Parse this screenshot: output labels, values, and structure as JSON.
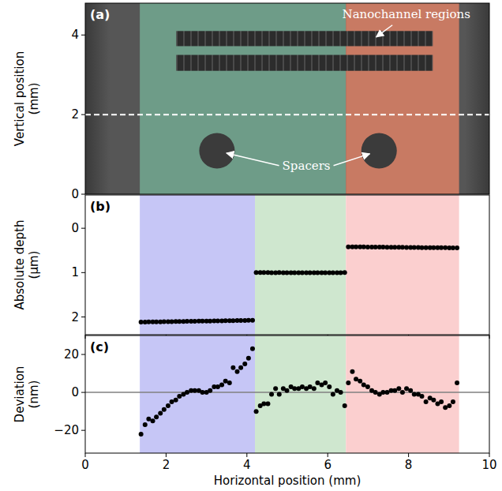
{
  "chart_data": [
    {
      "type": "image",
      "title": "(a)",
      "y_label": "Vertical position (mm)",
      "xlim": [
        0,
        10
      ],
      "ylim": [
        0,
        4.8
      ],
      "yticks": [
        0,
        2,
        4
      ],
      "tick_labels": "y",
      "regions": [
        {
          "start": 1.35,
          "end": 6.45,
          "color": "#6e9c88"
        },
        {
          "start": 6.45,
          "end": 9.25,
          "color": "#c87a63"
        }
      ],
      "channels": [
        {
          "x0": 2.25,
          "x1": 8.6,
          "y0": 3.72,
          "y1": 4.1
        },
        {
          "x0": 2.25,
          "x1": 8.6,
          "y0": 3.1,
          "y1": 3.5
        }
      ],
      "spacers": [
        {
          "x": 3.26,
          "y": 1.09,
          "r": 0.44
        },
        {
          "x": 7.27,
          "y": 1.09,
          "r": 0.44
        }
      ],
      "cut_line": 2,
      "annotations": [
        "Nanochannel regions",
        "Spacers"
      ]
    },
    {
      "type": "scatter",
      "title": "(b)",
      "y_label": "Absolute depth (μm)",
      "xlim": [
        0,
        10
      ],
      "ylim": [
        2.4,
        -0.75
      ],
      "xticks": [
        0,
        2,
        4,
        6,
        8,
        10
      ],
      "yticks": [
        0,
        1,
        2
      ],
      "tick_labels": "y",
      "color": "#000000",
      "marker": "circle",
      "regions": [
        {
          "start": 1.35,
          "end": 4.2,
          "color": "#c6c6f6"
        },
        {
          "start": 4.2,
          "end": 6.45,
          "color": "#cfe7cf"
        },
        {
          "start": 6.45,
          "end": 9.25,
          "color": "#fbcfcf"
        }
      ],
      "x": [
        1.38,
        1.48,
        1.57,
        1.67,
        1.76,
        1.86,
        1.95,
        2.05,
        2.14,
        2.24,
        2.33,
        2.43,
        2.52,
        2.62,
        2.71,
        2.81,
        2.9,
        3.0,
        3.09,
        3.19,
        3.28,
        3.38,
        3.47,
        3.57,
        3.66,
        3.76,
        3.85,
        3.95,
        4.04,
        4.14,
        4.23,
        4.33,
        4.42,
        4.52,
        4.61,
        4.71,
        4.8,
        4.9,
        4.99,
        5.09,
        5.18,
        5.28,
        5.37,
        5.47,
        5.56,
        5.66,
        5.75,
        5.85,
        5.94,
        6.04,
        6.13,
        6.23,
        6.32,
        6.42,
        6.51,
        6.61,
        6.7,
        6.8,
        6.89,
        6.99,
        7.09,
        7.18,
        7.28,
        7.37,
        7.47,
        7.57,
        7.66,
        7.76,
        7.85,
        7.95,
        8.05,
        8.14,
        8.24,
        8.33,
        8.43,
        8.53,
        8.62,
        8.72,
        8.81,
        8.91,
        9.01,
        9.1,
        9.2
      ],
      "values": [
        2.115,
        2.114,
        2.112,
        2.111,
        2.11,
        2.109,
        2.107,
        2.106,
        2.105,
        2.103,
        2.102,
        2.1,
        2.099,
        2.098,
        2.096,
        2.095,
        2.094,
        2.092,
        2.091,
        2.09,
        2.088,
        2.087,
        2.086,
        2.084,
        2.083,
        2.081,
        2.08,
        2.079,
        2.077,
        2.076,
        1.0,
        1.0,
        1.0,
        1.0,
        1.001,
        1.001,
        1.0,
        1.001,
        1.001,
        1.001,
        1.001,
        1.001,
        1.001,
        1.001,
        1.001,
        1.001,
        1.002,
        1.002,
        1.002,
        1.002,
        1.001,
        1.001,
        1.001,
        1.0,
        0.42,
        0.419,
        0.42,
        0.421,
        0.422,
        0.423,
        0.424,
        0.425,
        0.426,
        0.426,
        0.427,
        0.428,
        0.429,
        0.43,
        0.431,
        0.432,
        0.433,
        0.434,
        0.435,
        0.436,
        0.436,
        0.437,
        0.438,
        0.439,
        0.44,
        0.44,
        0.441,
        0.442,
        0.441
      ]
    },
    {
      "type": "scatter",
      "title": "(c)",
      "x_label": "Horizontal position (mm)",
      "y_label": "Deviation (nm)",
      "xlim": [
        0,
        10
      ],
      "ylim": [
        -32,
        30
      ],
      "xticks": [
        0,
        2,
        4,
        6,
        8,
        10
      ],
      "yticks": [
        {
          "value": -20,
          "label": "−20"
        },
        0,
        20
      ],
      "color": "#000000",
      "marker": "circle",
      "hline": 0,
      "regions": [
        {
          "start": 1.35,
          "end": 4.2,
          "color": "#c6c6f6"
        },
        {
          "start": 4.2,
          "end": 6.45,
          "color": "#cfe7cf"
        },
        {
          "start": 6.45,
          "end": 9.25,
          "color": "#fbcfcf"
        }
      ],
      "x": [
        1.38,
        1.48,
        1.57,
        1.67,
        1.76,
        1.86,
        1.95,
        2.05,
        2.14,
        2.24,
        2.33,
        2.43,
        2.52,
        2.62,
        2.71,
        2.81,
        2.9,
        3.0,
        3.09,
        3.19,
        3.28,
        3.38,
        3.47,
        3.57,
        3.66,
        3.76,
        3.85,
        3.95,
        4.04,
        4.14,
        4.23,
        4.33,
        4.42,
        4.52,
        4.61,
        4.71,
        4.8,
        4.9,
        4.99,
        5.09,
        5.18,
        5.28,
        5.37,
        5.47,
        5.56,
        5.66,
        5.75,
        5.85,
        5.94,
        6.04,
        6.13,
        6.23,
        6.32,
        6.42,
        6.51,
        6.61,
        6.7,
        6.8,
        6.89,
        6.99,
        7.09,
        7.18,
        7.28,
        7.37,
        7.47,
        7.57,
        7.66,
        7.76,
        7.85,
        7.95,
        8.05,
        8.14,
        8.24,
        8.33,
        8.43,
        8.53,
        8.62,
        8.72,
        8.81,
        8.91,
        9.01,
        9.1,
        9.2
      ],
      "values": [
        -22,
        -17,
        -14,
        -15,
        -13,
        -11,
        -9,
        -7,
        -5,
        -4,
        -2,
        -1,
        0,
        1,
        1,
        1,
        0,
        0,
        1,
        3,
        3,
        4,
        6,
        5,
        13,
        11,
        13,
        15,
        18,
        23,
        -10,
        -7,
        -6,
        -6,
        -1,
        2,
        -1,
        2,
        1,
        3,
        2,
        2,
        3,
        2,
        3,
        2,
        5,
        4,
        5,
        3,
        -1,
        1,
        0,
        -7,
        5,
        11,
        7,
        6,
        4,
        3,
        1,
        0,
        -1,
        0,
        0,
        1,
        1,
        2,
        0,
        2,
        1,
        -1,
        -1,
        -2,
        -5,
        -3,
        -4,
        -6,
        -5,
        -8,
        -7,
        -5,
        5
      ]
    }
  ]
}
